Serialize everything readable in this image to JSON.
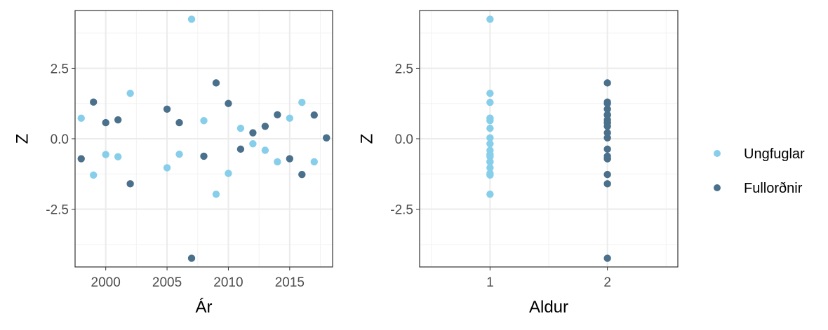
{
  "colors": {
    "ungfuglar": "#87ceeb",
    "fullordnir": "#4a708b",
    "grid_major": "#ebebeb",
    "grid_minor": "#f2f2f2",
    "panel_border": "#333333"
  },
  "legend": {
    "position": "right",
    "items": [
      "Ungfuglar",
      "Fullorðnir"
    ]
  },
  "chart_data": [
    {
      "type": "scatter",
      "xlabel": "Ár",
      "ylabel": "Z",
      "xlim": [
        1997.5,
        2018.5
      ],
      "ylim": [
        -4.55,
        4.55
      ],
      "x_ticks": [
        2000,
        2005,
        2010,
        2015
      ],
      "x_tick_labels": [
        "2000",
        "2005",
        "2010",
        "2015"
      ],
      "y_ticks": [
        -2.5,
        0,
        2.5
      ],
      "y_tick_labels": [
        "-2.5",
        "0.0",
        "2.5"
      ],
      "grid": true,
      "series": [
        {
          "name": "Ungfuglar",
          "points": [
            [
              1998,
              0.73
            ],
            [
              1999,
              -1.29
            ],
            [
              2000,
              -0.56
            ],
            [
              2001,
              -0.64
            ],
            [
              2002,
              1.61
            ],
            [
              2005,
              -1.03
            ],
            [
              2006,
              -0.55
            ],
            [
              2007,
              4.24
            ],
            [
              2008,
              0.64
            ],
            [
              2009,
              -1.97
            ],
            [
              2010,
              -1.23
            ],
            [
              2011,
              0.37
            ],
            [
              2012,
              -0.18
            ],
            [
              2013,
              -0.41
            ],
            [
              2014,
              -0.82
            ],
            [
              2015,
              0.73
            ],
            [
              2016,
              1.29
            ],
            [
              2017,
              -0.82
            ],
            [
              2018,
              0.03
            ]
          ]
        },
        {
          "name": "Fullorðnir",
          "points": [
            [
              1998,
              -0.71
            ],
            [
              1999,
              1.3
            ],
            [
              2000,
              0.57
            ],
            [
              2001,
              0.67
            ],
            [
              2002,
              -1.6
            ],
            [
              2005,
              1.05
            ],
            [
              2006,
              0.57
            ],
            [
              2007,
              -4.24
            ],
            [
              2008,
              -0.62
            ],
            [
              2009,
              1.98
            ],
            [
              2010,
              1.25
            ],
            [
              2011,
              -0.37
            ],
            [
              2012,
              0.21
            ],
            [
              2013,
              0.44
            ],
            [
              2014,
              0.85
            ],
            [
              2015,
              -0.71
            ],
            [
              2016,
              -1.27
            ],
            [
              2017,
              0.84
            ],
            [
              2018,
              0.03
            ]
          ]
        }
      ]
    },
    {
      "type": "scatter",
      "xlabel": "Aldur",
      "ylabel": "Z",
      "xlim": [
        0.4,
        2.6
      ],
      "ylim": [
        -4.55,
        4.55
      ],
      "x_ticks": [
        1,
        2
      ],
      "x_tick_labels": [
        "1",
        "2"
      ],
      "y_ticks": [
        -2.5,
        0,
        2.5
      ],
      "y_tick_labels": [
        "-2.5",
        "0.0",
        "2.5"
      ],
      "grid": true,
      "series": [
        {
          "name": "Ungfuglar",
          "points": [
            [
              1,
              4.24
            ],
            [
              1,
              1.61
            ],
            [
              1,
              1.29
            ],
            [
              1,
              0.73
            ],
            [
              1,
              0.73
            ],
            [
              1,
              0.64
            ],
            [
              1,
              0.37
            ],
            [
              1,
              0.03
            ],
            [
              1,
              -0.18
            ],
            [
              1,
              -0.41
            ],
            [
              1,
              -0.55
            ],
            [
              1,
              -0.56
            ],
            [
              1,
              -0.64
            ],
            [
              1,
              -0.82
            ],
            [
              1,
              -0.82
            ],
            [
              1,
              -1.03
            ],
            [
              1,
              -1.23
            ],
            [
              1,
              -1.29
            ],
            [
              1,
              -1.97
            ]
          ]
        },
        {
          "name": "Fullorðnir",
          "points": [
            [
              2,
              1.98
            ],
            [
              2,
              1.3
            ],
            [
              2,
              1.25
            ],
            [
              2,
              1.05
            ],
            [
              2,
              0.85
            ],
            [
              2,
              0.84
            ],
            [
              2,
              0.67
            ],
            [
              2,
              0.57
            ],
            [
              2,
              0.57
            ],
            [
              2,
              0.44
            ],
            [
              2,
              0.21
            ],
            [
              2,
              0.03
            ],
            [
              2,
              -0.37
            ],
            [
              2,
              -0.62
            ],
            [
              2,
              -0.71
            ],
            [
              2,
              -0.71
            ],
            [
              2,
              -1.27
            ],
            [
              2,
              -1.6
            ],
            [
              2,
              -4.24
            ]
          ]
        }
      ]
    }
  ]
}
